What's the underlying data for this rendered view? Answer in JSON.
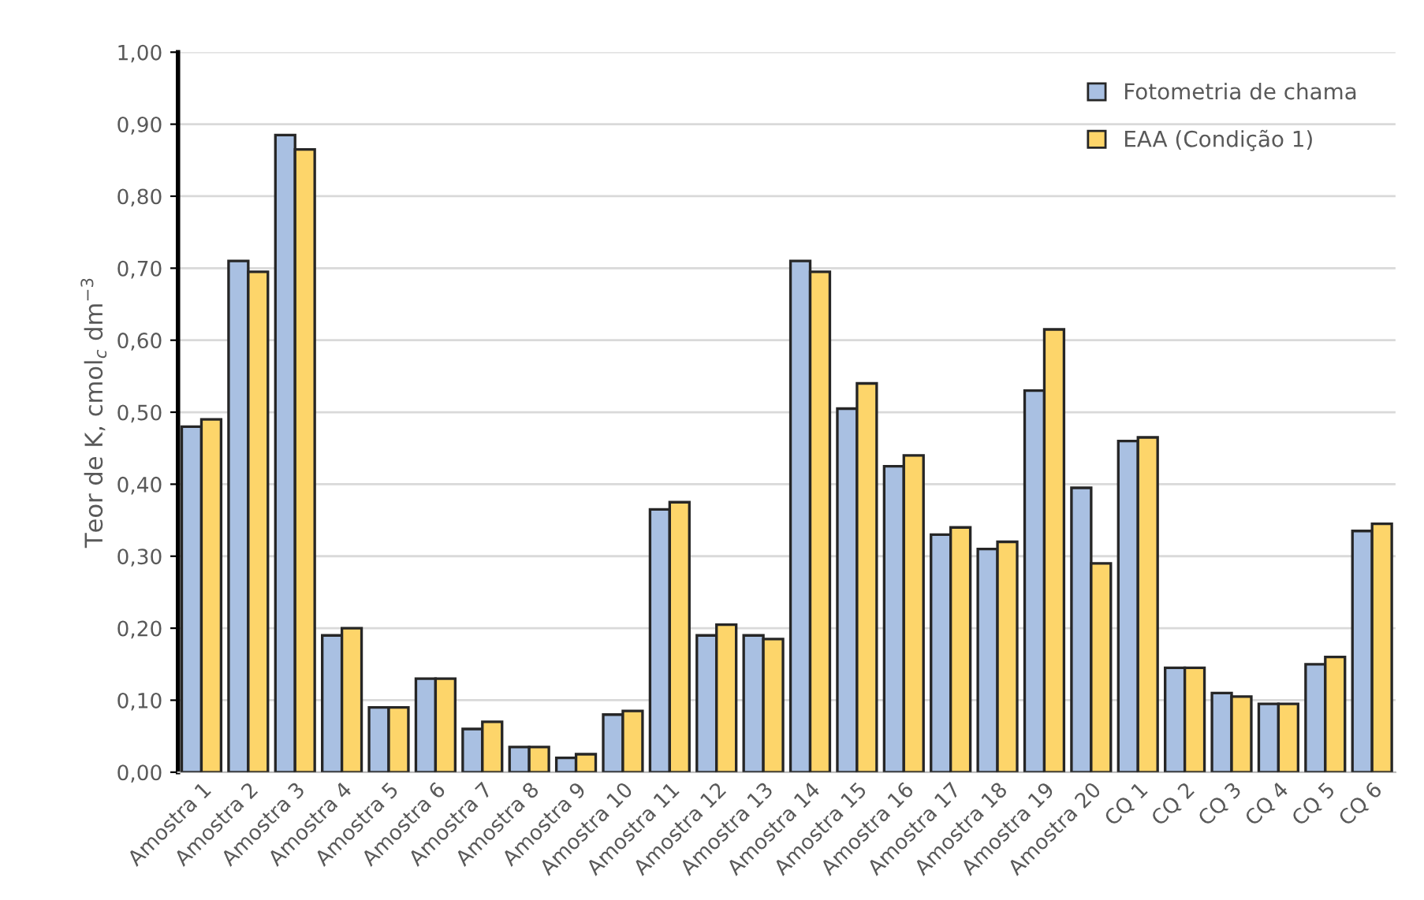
{
  "chart_data": {
    "type": "bar",
    "ylabel": "Teor de K, cmol$_{c}$ dm$^{−3}$",
    "categories": [
      "Amostra 1",
      "Amostra 2",
      "Amostra 3",
      "Amostra 4",
      "Amostra 5",
      "Amostra 6",
      "Amostra 7",
      "Amostra 8",
      "Amostra 9",
      "Amostra 10",
      "Amostra 11",
      "Amostra 12",
      "Amostra 13",
      "Amostra 14",
      "Amostra 15",
      "Amostra 16",
      "Amostra 17",
      "Amostra 18",
      "Amostra 19",
      "Amostra 20",
      "CQ 1",
      "CQ 2",
      "CQ 3",
      "CQ 4",
      "CQ 5",
      "CQ 6"
    ],
    "series": [
      {
        "name": "Fotometria de chama",
        "color": "#a9c0e2",
        "values": [
          0.48,
          0.71,
          0.885,
          0.19,
          0.09,
          0.13,
          0.06,
          0.035,
          0.02,
          0.08,
          0.365,
          0.19,
          0.19,
          0.71,
          0.505,
          0.425,
          0.33,
          0.31,
          0.53,
          0.395,
          0.46,
          0.145,
          0.11,
          0.095,
          0.15,
          0.335
        ]
      },
      {
        "name": "EAA (Condição 1)",
        "color": "#fdd56a",
        "values": [
          0.49,
          0.695,
          0.865,
          0.2,
          0.09,
          0.13,
          0.07,
          0.035,
          0.025,
          0.085,
          0.375,
          0.205,
          0.185,
          0.695,
          0.54,
          0.44,
          0.34,
          0.32,
          0.615,
          0.29,
          0.465,
          0.145,
          0.105,
          0.095,
          0.16,
          0.345
        ]
      }
    ],
    "ylim": [
      0,
      1
    ],
    "yticks": [
      {
        "value": 0,
        "label": "0,00"
      },
      {
        "value": 0.1,
        "label": "0,10"
      },
      {
        "value": 0.2,
        "label": "0,20"
      },
      {
        "value": 0.3,
        "label": "0,30"
      },
      {
        "value": 0.4,
        "label": "0,40"
      },
      {
        "value": 0.5,
        "label": "0,50"
      },
      {
        "value": 0.6,
        "label": "0,60"
      },
      {
        "value": 0.7,
        "label": "0,70"
      },
      {
        "value": 0.8,
        "label": "0,80"
      },
      {
        "value": 0.9,
        "label": "0,90"
      },
      {
        "value": 1,
        "label": "1,00"
      }
    ],
    "grid": "y",
    "legend": "top right"
  }
}
